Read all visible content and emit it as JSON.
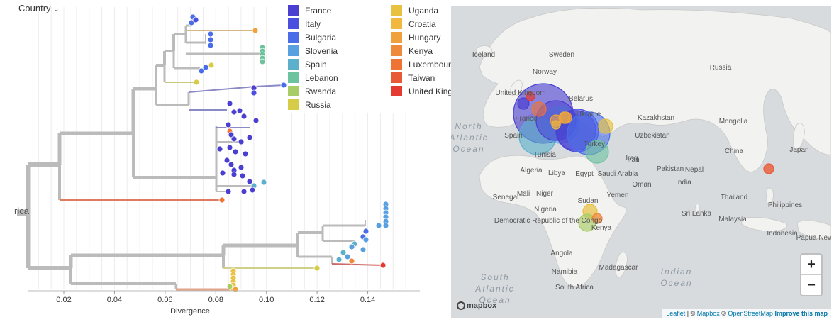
{
  "tree": {
    "color_by_label": "Country",
    "x_axis_label": "Divergence",
    "x_ticks": [
      "0.02",
      "0.04",
      "0.06",
      "0.08",
      "0.10",
      "0.12",
      "0.14"
    ],
    "x_tick_values": [
      0.02,
      0.04,
      0.06,
      0.08,
      0.1,
      0.12,
      0.14
    ],
    "x_domain": [
      0.006,
      0.16
    ],
    "truncated_root_label": "rica"
  },
  "legend": [
    {
      "label": "France",
      "color": "#4a3fd0"
    },
    {
      "label": "Italy",
      "color": "#4b4fe0"
    },
    {
      "label": "Bulgaria",
      "color": "#4a6ee8"
    },
    {
      "label": "Slovenia",
      "color": "#58a0e0"
    },
    {
      "label": "Spain",
      "color": "#5cb0cc"
    },
    {
      "label": "Lebanon",
      "color": "#6cc39e"
    },
    {
      "label": "Rwanda",
      "color": "#a8cc66"
    },
    {
      "label": "Russia",
      "color": "#d6cc48"
    },
    {
      "label": "Uganda",
      "color": "#e8c140"
    },
    {
      "label": "Croatia",
      "color": "#f0b83e"
    },
    {
      "label": "Hungary",
      "color": "#f0a03c"
    },
    {
      "label": "Kenya",
      "color": "#ee8a3a"
    },
    {
      "label": "Luxembourg",
      "color": "#ee7436"
    },
    {
      "label": "Taiwan",
      "color": "#e85a36"
    },
    {
      "label": "United Kingdom",
      "color": "#e33a32"
    }
  ],
  "map": {
    "country_labels": [
      {
        "text": "Sweden"
      },
      {
        "text": "Norway"
      },
      {
        "text": "United Kingdom"
      },
      {
        "text": "Belarus"
      },
      {
        "text": "Ukraine"
      },
      {
        "text": "France"
      },
      {
        "text": "Spain"
      },
      {
        "text": "Turkey"
      },
      {
        "text": "Iraq"
      },
      {
        "text": "Iran"
      },
      {
        "text": "Tunisia"
      },
      {
        "text": "Algeria"
      },
      {
        "text": "Libya"
      },
      {
        "text": "Egypt"
      },
      {
        "text": "Saudi Arabia"
      },
      {
        "text": "Oman"
      },
      {
        "text": "Yemen"
      },
      {
        "text": "Mali"
      },
      {
        "text": "Niger"
      },
      {
        "text": "Sudan"
      },
      {
        "text": "Senegal"
      },
      {
        "text": "Nigeria"
      },
      {
        "text": "Democratic Republic of the Congo"
      },
      {
        "text": "Angola"
      },
      {
        "text": "Namibia"
      },
      {
        "text": "South Africa"
      },
      {
        "text": "Madagascar"
      },
      {
        "text": "Kenya"
      },
      {
        "text": "Russia"
      },
      {
        "text": "Kazakhstan"
      },
      {
        "text": "Uzbekistan"
      },
      {
        "text": "Mongolia"
      },
      {
        "text": "China"
      },
      {
        "text": "Japan"
      },
      {
        "text": "Pakistan"
      },
      {
        "text": "Nepal"
      },
      {
        "text": "India"
      },
      {
        "text": "Sri Lanka"
      },
      {
        "text": "Thailand"
      },
      {
        "text": "Malaysia"
      },
      {
        "text": "Philippines"
      },
      {
        "text": "Indonesia"
      },
      {
        "text": "Papua New Guinea"
      },
      {
        "text": "Iceland"
      }
    ],
    "ocean_labels": [
      {
        "text": "South Atlantic Ocean"
      },
      {
        "text": "Indian Ocean"
      },
      {
        "text": "North Atlantic Ocean"
      }
    ],
    "zoom_in": "+",
    "zoom_out": "−",
    "logo_text": "mapbox",
    "attribution": {
      "leaflet": "Leaflet",
      "sep1": " | © ",
      "mapbox": "Mapbox",
      "sep2": " © ",
      "osm": "OpenStreetMap",
      "improve": "Improve this map"
    }
  }
}
